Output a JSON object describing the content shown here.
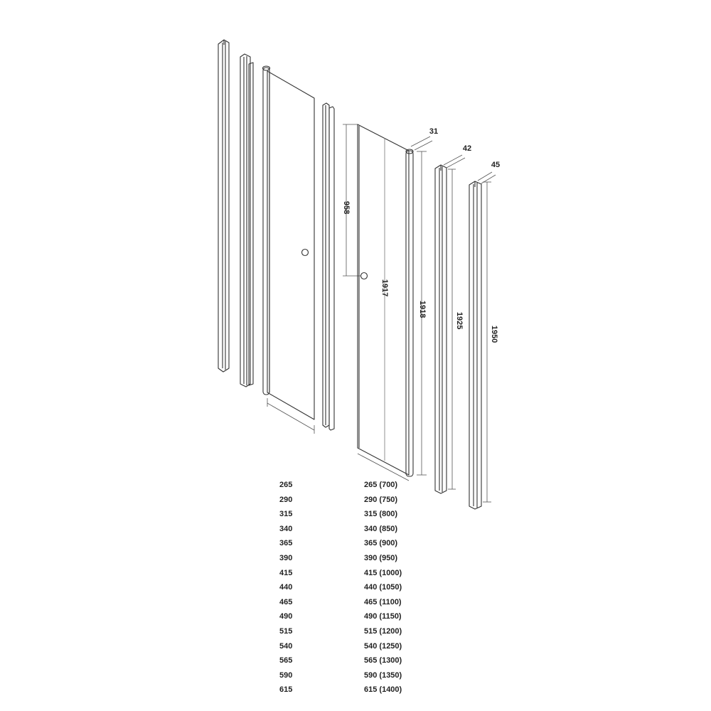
{
  "dimensions": {
    "handle_height": "958",
    "panel_height": "1917",
    "hinge_profile_height": "1918",
    "wall_profile_height": "1925",
    "adjust_profile_height": "1950",
    "hinge_width": "31",
    "wall_profile_width": "42",
    "adjust_profile_width": "45"
  },
  "size_table": {
    "left_column": [
      "265",
      "290",
      "315",
      "340",
      "365",
      "390",
      "415",
      "440",
      "465",
      "490",
      "515",
      "540",
      "565",
      "590",
      "615"
    ],
    "right_column": [
      "265 (700)",
      "290 (750)",
      "315 (800)",
      "340 (850)",
      "365 (900)",
      "390 (950)",
      "415 (1000)",
      "440 (1050)",
      "465 (1100)",
      "490 (1150)",
      "515 (1200)",
      "540 (1250)",
      "565 (1300)",
      "590 (1350)",
      "615 (1400)"
    ]
  },
  "colors": {
    "line": "#333333",
    "dim_line": "#555555",
    "text": "#222222"
  }
}
